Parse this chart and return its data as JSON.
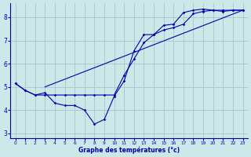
{
  "xlabel": "Graphe des températures (°c)",
  "background_color": "#cce8e8",
  "grid_color": "#aacccc",
  "line_color": "#0000aa",
  "xlim": [
    -0.5,
    23.5
  ],
  "ylim": [
    2.8,
    8.6
  ],
  "yticks": [
    3,
    4,
    5,
    6,
    7,
    8
  ],
  "xticks": [
    0,
    1,
    2,
    3,
    4,
    5,
    6,
    7,
    8,
    9,
    10,
    11,
    12,
    13,
    14,
    15,
    16,
    17,
    18,
    19,
    20,
    21,
    22,
    23
  ],
  "series1_x": [
    0,
    1,
    2,
    3,
    4,
    5,
    6,
    7,
    8,
    9,
    10,
    11,
    12,
    13,
    14,
    15,
    16,
    17,
    18,
    19,
    20,
    21,
    22,
    23
  ],
  "series1_y": [
    5.15,
    4.85,
    4.65,
    4.75,
    4.3,
    4.2,
    4.2,
    4.0,
    3.4,
    3.6,
    4.6,
    5.25,
    6.55,
    7.25,
    7.25,
    7.65,
    7.7,
    8.2,
    8.3,
    8.35,
    8.3,
    8.25,
    8.3,
    8.3
  ],
  "series2_x": [
    0,
    1,
    2,
    3,
    4,
    5,
    6,
    7,
    8,
    9,
    10,
    11,
    12,
    13,
    14,
    15,
    16,
    17,
    18,
    19,
    20,
    21,
    22,
    23
  ],
  "series2_y": [
    5.15,
    4.85,
    4.65,
    4.65,
    4.65,
    4.65,
    4.65,
    4.65,
    4.65,
    4.65,
    4.65,
    5.5,
    6.2,
    6.9,
    7.25,
    7.45,
    7.55,
    7.7,
    8.15,
    8.25,
    8.3,
    8.3,
    8.3,
    8.3
  ],
  "series3_x": [
    3,
    23
  ],
  "series3_y": [
    5.0,
    8.3
  ]
}
